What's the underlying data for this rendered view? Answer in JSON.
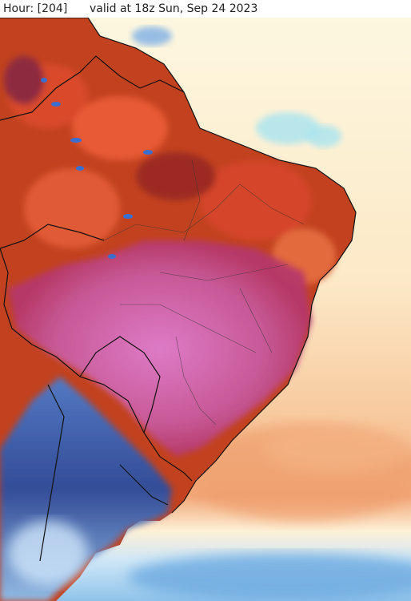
{
  "header": {
    "hour_label": "Hour: [204]",
    "valid_label": "valid at 18z Sun, Sep 24 2023"
  },
  "map": {
    "region": "South America",
    "colors": {
      "ocean_warm": "#f6c99c",
      "ocean_cool": "#dceeff",
      "hot": "#b8321e",
      "very_hot": "#d968b8",
      "cold": "#2a4c9c"
    }
  }
}
